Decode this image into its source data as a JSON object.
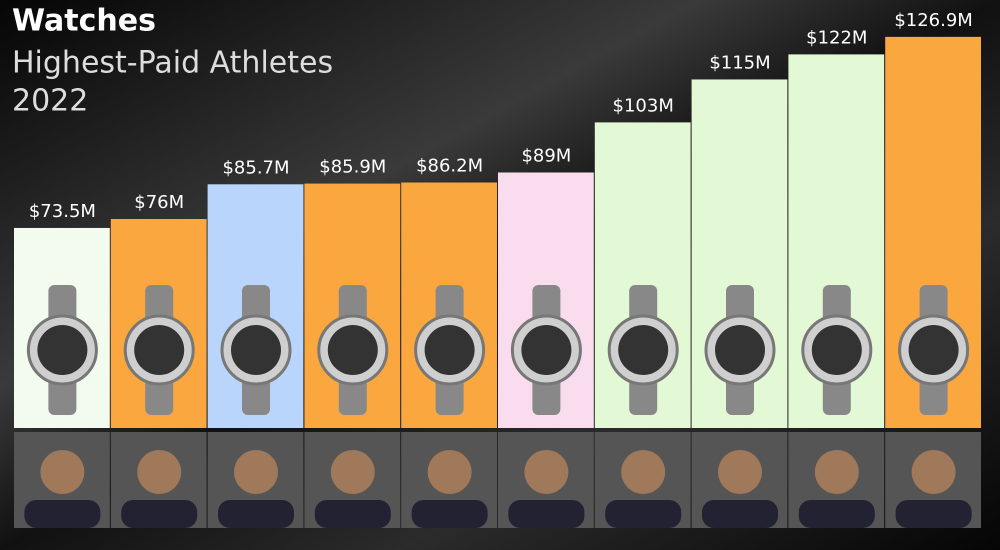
{
  "chart_data": {
    "type": "bar",
    "title": "Watches",
    "subtitle": "Highest-Paid Athletes",
    "year": "2022",
    "values": [
      73.5,
      76,
      85.7,
      85.9,
      86.2,
      89,
      103,
      115,
      122,
      126.9
    ],
    "value_labels": [
      "$73.5M",
      "$76M",
      "$85.7M",
      "$85.9M",
      "$86.2M",
      "$89M",
      "$103M",
      "$115M",
      "$122M",
      "$126.9M"
    ],
    "colors": [
      "#f2fbee",
      "#f9a73e",
      "#b9d5fb",
      "#f9a73e",
      "#f9a73e",
      "#fadcef",
      "#e3f8d4",
      "#e3f8d4",
      "#e3f8d4",
      "#f9a73e"
    ],
    "ylim": [
      17.6,
      137.2
    ]
  }
}
